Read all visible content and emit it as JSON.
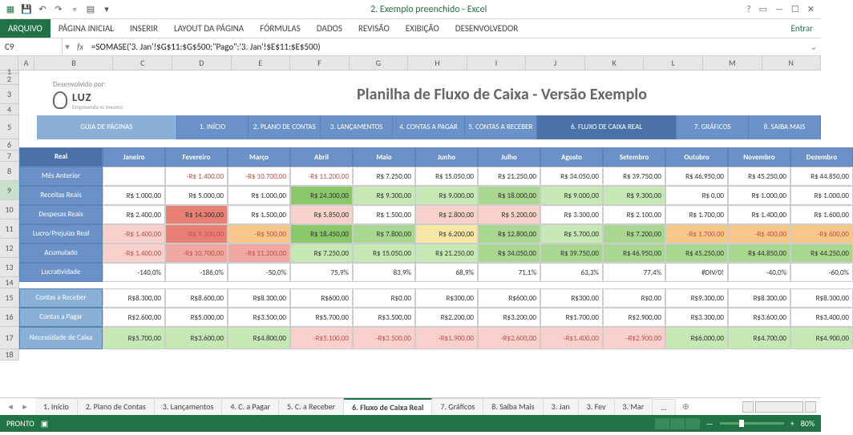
{
  "app": {
    "title": "2. Exemplo preenchido - Excel",
    "signin": "Entrar"
  },
  "ribbon": [
    "ARQUIVO",
    "PÁGINA INICIAL",
    "INSERIR",
    "LAYOUT DA PÁGINA",
    "FÓRMULAS",
    "DADOS",
    "REVISÃO",
    "EXIBIÇÃO",
    "DESENVOLVEDOR"
  ],
  "namebox": "C9",
  "formula": "=SOMASE('3. Jan'!$G$11:$G$500;\"Pago\";'3. Jan'!$E$11:$E$500)",
  "cols": [
    "A",
    "B",
    "C",
    "D",
    "E",
    "F",
    "G",
    "H",
    "I",
    "J",
    "K",
    "L",
    "M",
    "N"
  ],
  "rows": [
    "1",
    "2",
    "3",
    "4",
    "5",
    "6",
    "7",
    "8",
    "9",
    "10",
    "11",
    "12",
    "13",
    "14",
    "15",
    "16",
    "17",
    "18"
  ],
  "logo": {
    "dev": "Desenvolvido por:",
    "name": "LUZ",
    "sub": "Empreenda vc mesmo"
  },
  "title": "Planilha de Fluxo de Caixa - Versão Exemplo",
  "nav": [
    "GUIA DE PÁGINAS",
    "1. INÍCIO",
    "2. PLANO DE CONTAS",
    "3. LANÇAMENTOS",
    "4. CONTAS A PAGAR",
    "5. CONTAS A RECEBER",
    "6. FLUXO DE CAIXA REAL",
    "7. GRÁFICOS",
    "8. SAIBA MAIS"
  ],
  "months": [
    "Janeiro",
    "Fevereiro",
    "Março",
    "Abril",
    "Maio",
    "Junho",
    "Julho",
    "Agosto",
    "Setembro",
    "Outubro",
    "Novembro",
    "Dezembro"
  ],
  "labels": {
    "real": "Real",
    "mes": "Mês Anterior",
    "rec": "Receitas Reais",
    "desp": "Despesas Reais",
    "lucro": "Lucro/Prejuízo Real",
    "acum": "Acumulado",
    "lucr": "Lucratividade",
    "car": "Contas a Receber",
    "cap": "Contas a Pagar",
    "nec": "Necessidade de Caixa"
  },
  "data": {
    "mes": [
      "",
      "-R$ 1.400,00",
      "-R$ 10.700,00",
      "-R$ 11.200,00",
      "R$ 7.250,00",
      "R$ 15.050,00",
      "R$ 21.250,00",
      "R$ 34.050,00",
      "R$ 39.750,00",
      "R$ 46.950,00",
      "R$ 45.250,00",
      "R$ 44.850,00"
    ],
    "rec": [
      "R$ 1.000,00",
      "R$ 5.000,00",
      "R$ 1.000,00",
      "R$ 24.300,00",
      "R$ 9.300,00",
      "R$ 9.000,00",
      "R$ 18.000,00",
      "R$ 9.000,00",
      "R$ 9.300,00",
      "R$ 0,00",
      "R$ 1.000,00",
      "R$ 1.000,00"
    ],
    "desp": [
      "R$ 2.400,00",
      "R$ 14.300,00",
      "R$ 1.500,00",
      "R$ 5.850,00",
      "R$ 1.500,00",
      "R$ 2.800,00",
      "R$ 5.200,00",
      "R$ 3.300,00",
      "R$ 2.100,00",
      "R$ 1.700,00",
      "R$ 1.400,00",
      "R$ 1.600,00"
    ],
    "lucro": [
      "-R$ 1.400,00",
      "-R$ 9.300,00",
      "-R$ 500,00",
      "R$ 18.450,00",
      "R$ 7.800,00",
      "R$ 6.200,00",
      "R$ 12.800,00",
      "R$ 5.700,00",
      "R$ 7.200,00",
      "-R$ 1.700,00",
      "-R$ 400,00",
      "-R$ 600,00"
    ],
    "acum": [
      "-R$ 1.400,00",
      "-R$ 10.700,00",
      "-R$ 11.200,00",
      "R$ 7.250,00",
      "R$ 15.050,00",
      "R$ 21.250,00",
      "R$ 34.050,00",
      "R$ 39.750,00",
      "R$ 46.950,00",
      "R$ 45.250,00",
      "R$ 44.850,00",
      "R$ 44.250,00"
    ],
    "lucr": [
      "-140,0%",
      "-186,0%",
      "-50,0%",
      "75,9%",
      "83,9%",
      "68,9%",
      "71,1%",
      "63,3%",
      "77,4%",
      "#DIV/0!",
      "-40,0%",
      "-60,0%"
    ],
    "car": [
      "R$8.300,00",
      "R$8.600,00",
      "R$8.300,00",
      "R$600,00",
      "R$0,00",
      "R$300,00",
      "R$600,00",
      "R$300,00",
      "R$0,00",
      "R$9.300,00",
      "R$8.300,00",
      "R$8.300,00"
    ],
    "cap": [
      "R$2.600,00",
      "R$5.000,00",
      "R$3.500,00",
      "R$5.700,00",
      "R$3.500,00",
      "R$2.200,00",
      "R$3.200,00",
      "R$1.700,00",
      "R$2.900,00",
      "R$3.300,00",
      "R$3.600,00",
      "R$3.400,00"
    ],
    "nec": [
      "R$5.700,00",
      "R$3.600,00",
      "R$4.800,00",
      "-R$5.100,00",
      "-R$3.500,00",
      "-R$1.900,00",
      "-R$2.600,00",
      "-R$1.400,00",
      "-R$2.900,00",
      "R$6.000,00",
      "R$4.700,00",
      "R$4.900,00"
    ]
  },
  "cellcolors": {
    "rec": [
      "",
      "",
      "",
      "green3",
      "green1",
      "green1",
      "green2",
      "green1",
      "green1",
      "",
      "",
      ""
    ],
    "desp": [
      "",
      "red3",
      "",
      "red1",
      "",
      "red1",
      "red1",
      "",
      "",
      "",
      "",
      ""
    ],
    "lucro": [
      "red1",
      "red3",
      "orange",
      "green3",
      "green2",
      "yel",
      "green2",
      "green1",
      "green2",
      "orange",
      "orange",
      "orange"
    ],
    "acum": [
      "red1",
      "red2",
      "red2",
      "green1",
      "green1",
      "green1",
      "green2",
      "green2",
      "green2",
      "green2",
      "green2",
      "green2"
    ],
    "nec": [
      "green1",
      "green1",
      "green1",
      "red1",
      "red1",
      "red1",
      "red1",
      "red1",
      "red1",
      "green1",
      "green1",
      "green1"
    ]
  },
  "negs": {
    "mes": [
      "",
      "1",
      "1",
      "1",
      "",
      "",
      "",
      "",
      "",
      "",
      "",
      ""
    ],
    "lucro": [
      "1",
      "1",
      "1",
      "",
      "",
      "",
      "",
      "",
      "",
      "1",
      "1",
      "1"
    ],
    "acum": [
      "1",
      "1",
      "1",
      "",
      "",
      "",
      "",
      "",
      "",
      "",
      "",
      ""
    ],
    "nec": [
      "",
      "",
      "",
      "1",
      "1",
      "1",
      "1",
      "1",
      "1",
      "",
      "",
      ""
    ]
  },
  "tabs": [
    "1. Início",
    "2. Plano de Contas",
    "3. Lançamentos",
    "4. C. a Pagar",
    "5. C. a Receber",
    "6. Fluxo de Caixa Real",
    "7. Gráficos",
    "8. Saiba Mais",
    "3. Jan",
    "3. Fev",
    "3. Mar"
  ],
  "activeTab": 5,
  "status": {
    "ready": "PRONTO",
    "zoom": "80%"
  }
}
